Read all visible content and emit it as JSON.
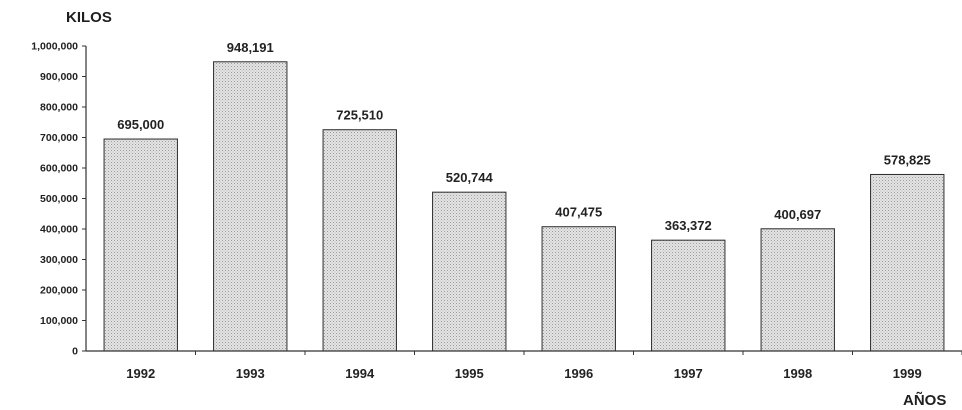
{
  "chart_data": {
    "type": "bar",
    "title": "",
    "xlabel": "AÑOS",
    "ylabel": "KILOS",
    "categories": [
      "1992",
      "1993",
      "1994",
      "1995",
      "1996",
      "1997",
      "1998",
      "1999"
    ],
    "values": [
      695000,
      948191,
      725510,
      520744,
      407475,
      363372,
      400697,
      578825
    ],
    "data_labels": [
      "695,000",
      "948,191",
      "725,510",
      "520,744",
      "407,475",
      "363,372",
      "400,697",
      "578,825"
    ],
    "ylim": [
      0,
      1000000
    ],
    "yticks": [
      0,
      100000,
      200000,
      300000,
      400000,
      500000,
      600000,
      700000,
      800000,
      900000,
      1000000
    ],
    "ytick_labels": [
      "0",
      "100,000",
      "200,000",
      "300,000",
      "400,000",
      "500,000",
      "600,000",
      "700,000",
      "800,000",
      "900,000",
      "1,000,000"
    ],
    "grid": false,
    "legend": "none",
    "bar_fill": "#d6d6d6",
    "bar_stroke": "#2b2b2b",
    "axis_color": "#333333"
  }
}
